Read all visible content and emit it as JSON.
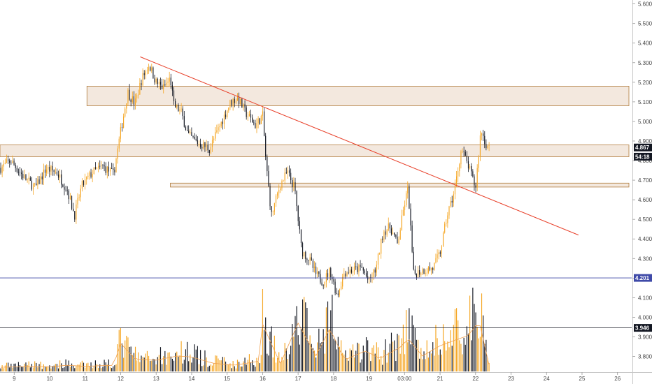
{
  "chart_data": {
    "type": "candlestick",
    "title": "",
    "xlabel": "",
    "ylabel": "",
    "ylim": [
      3.72,
      5.62
    ],
    "y_ticks": [
      "3.800",
      "3.900",
      "4.000",
      "4.100",
      "4.200",
      "4.300",
      "4.400",
      "4.500",
      "4.600",
      "4.700",
      "4.800",
      "4.900",
      "5.000",
      "5.100",
      "5.200",
      "5.300",
      "5.400",
      "5.500",
      "5.600"
    ],
    "x_ticks": [
      {
        "label": "9",
        "t": 0
      },
      {
        "label": "10",
        "t": 1
      },
      {
        "label": "11",
        "t": 2
      },
      {
        "label": "12",
        "t": 3
      },
      {
        "label": "13",
        "t": 4
      },
      {
        "label": "14",
        "t": 5
      },
      {
        "label": "15",
        "t": 6
      },
      {
        "label": "16",
        "t": 7
      },
      {
        "label": "17",
        "t": 8
      },
      {
        "label": "18",
        "t": 9
      },
      {
        "label": "19",
        "t": 10
      },
      {
        "label": "03:00",
        "t": 11
      },
      {
        "label": "21",
        "t": 12
      },
      {
        "label": "22",
        "t": 13
      },
      {
        "label": "23",
        "t": 14
      },
      {
        "label": "24",
        "t": 15
      },
      {
        "label": "25",
        "t": 16
      },
      {
        "label": "26",
        "t": 17
      }
    ],
    "xlim": [
      -0.4,
      17.4
    ],
    "grid": false,
    "price_path": [
      [
        -0.4,
        4.76
      ],
      [
        -0.1,
        4.8
      ],
      [
        0.3,
        4.71
      ],
      [
        0.6,
        4.66
      ],
      [
        0.9,
        4.76
      ],
      [
        1.2,
        4.74
      ],
      [
        1.5,
        4.65
      ],
      [
        1.7,
        4.52
      ],
      [
        1.9,
        4.67
      ],
      [
        2.2,
        4.74
      ],
      [
        2.5,
        4.77
      ],
      [
        2.8,
        4.73
      ],
      [
        3.0,
        4.95
      ],
      [
        3.2,
        5.15
      ],
      [
        3.4,
        5.09
      ],
      [
        3.6,
        5.22
      ],
      [
        3.8,
        5.29
      ],
      [
        4.0,
        5.2
      ],
      [
        4.2,
        5.17
      ],
      [
        4.4,
        5.22
      ],
      [
        4.5,
        5.08
      ],
      [
        4.7,
        5.05
      ],
      [
        4.9,
        4.93
      ],
      [
        5.1,
        4.9
      ],
      [
        5.3,
        4.88
      ],
      [
        5.5,
        4.86
      ],
      [
        5.7,
        4.94
      ],
      [
        5.9,
        5.02
      ],
      [
        6.1,
        5.1
      ],
      [
        6.3,
        5.12
      ],
      [
        6.5,
        5.05
      ],
      [
        6.8,
        4.98
      ],
      [
        7.0,
        5.03
      ],
      [
        7.1,
        4.78
      ],
      [
        7.25,
        4.52
      ],
      [
        7.5,
        4.68
      ],
      [
        7.7,
        4.74
      ],
      [
        7.9,
        4.66
      ],
      [
        8.1,
        4.34
      ],
      [
        8.3,
        4.3
      ],
      [
        8.5,
        4.22
      ],
      [
        8.7,
        4.18
      ],
      [
        8.9,
        4.24
      ],
      [
        9.1,
        4.11
      ],
      [
        9.3,
        4.23
      ],
      [
        9.5,
        4.24
      ],
      [
        9.8,
        4.25
      ],
      [
        10.0,
        4.18
      ],
      [
        10.2,
        4.25
      ],
      [
        10.4,
        4.44
      ],
      [
        10.6,
        4.46
      ],
      [
        10.8,
        4.37
      ],
      [
        11.0,
        4.58
      ],
      [
        11.1,
        4.66
      ],
      [
        11.25,
        4.22
      ],
      [
        11.5,
        4.24
      ],
      [
        11.8,
        4.25
      ],
      [
        12.0,
        4.33
      ],
      [
        12.2,
        4.52
      ],
      [
        12.4,
        4.64
      ],
      [
        12.6,
        4.86
      ],
      [
        12.8,
        4.77
      ],
      [
        13.0,
        4.66
      ],
      [
        13.15,
        4.96
      ],
      [
        13.3,
        4.88
      ],
      [
        13.4,
        4.86
      ]
    ],
    "volume_scale_max": 100,
    "volume_profile": [
      [
        -0.4,
        8
      ],
      [
        0.5,
        10
      ],
      [
        1.0,
        9
      ],
      [
        1.5,
        12
      ],
      [
        2.0,
        10
      ],
      [
        2.8,
        12
      ],
      [
        3.0,
        55
      ],
      [
        3.4,
        24
      ],
      [
        4.0,
        22
      ],
      [
        4.6,
        30
      ],
      [
        5.0,
        28
      ],
      [
        5.6,
        16
      ],
      [
        6.2,
        12
      ],
      [
        6.9,
        20
      ],
      [
        7.0,
        92
      ],
      [
        7.5,
        15
      ],
      [
        8.0,
        94
      ],
      [
        8.5,
        30
      ],
      [
        8.9,
        84
      ],
      [
        9.3,
        22
      ],
      [
        9.9,
        40
      ],
      [
        10.3,
        25
      ],
      [
        10.9,
        48
      ],
      [
        11.1,
        64
      ],
      [
        11.5,
        30
      ],
      [
        12.0,
        50
      ],
      [
        12.4,
        60
      ],
      [
        12.8,
        70
      ],
      [
        13.1,
        98
      ],
      [
        13.4,
        6
      ]
    ],
    "zones": [
      {
        "from": 5.08,
        "to": 5.18,
        "t_start": 2.05,
        "t_end": 17.4
      },
      {
        "from": 4.82,
        "to": 4.88,
        "t_start": -0.4,
        "t_end": 17.4
      },
      {
        "from": 4.665,
        "to": 4.685,
        "t_start": 4.4,
        "t_end": 17.4
      }
    ],
    "trendline": {
      "t1": 3.55,
      "v1": 5.33,
      "t2": 15.9,
      "v2": 4.42
    },
    "hlines": [
      4.201,
      3.946
    ],
    "price_badges": [
      {
        "label": "4.867",
        "value": 4.867,
        "color": "#131722"
      },
      {
        "label": "54:18",
        "value": 4.82,
        "color": "#131722"
      },
      {
        "label": "4.201",
        "value": 4.201,
        "color": "#3f4aa8"
      },
      {
        "label": "3.946",
        "value": 3.946,
        "color": "#131722"
      }
    ]
  }
}
